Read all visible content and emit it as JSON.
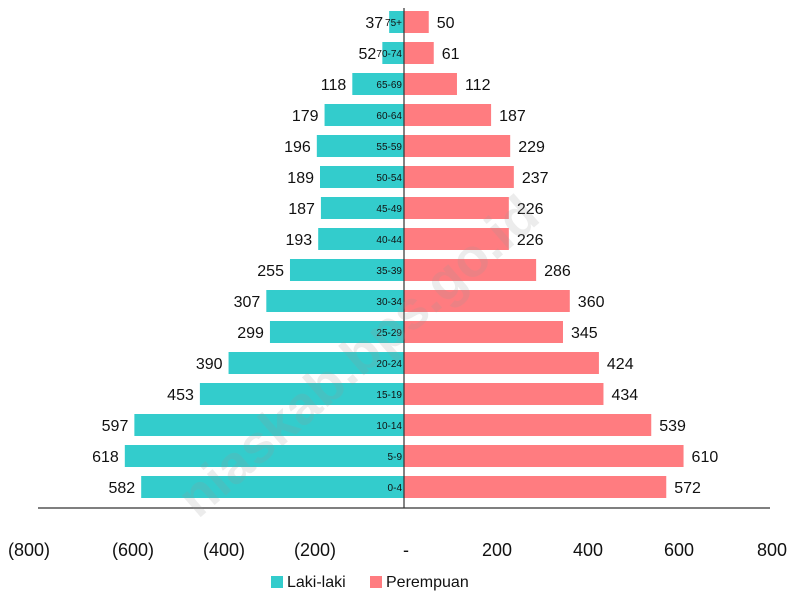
{
  "chart_data": {
    "type": "bar",
    "orientation": "horizontal",
    "categories": [
      "0-4",
      "5-9",
      "10-14",
      "15-19",
      "20-24",
      "25-29",
      "30-34",
      "35-39",
      "40-44",
      "45-49",
      "50-54",
      "55-59",
      "60-64",
      "65-69",
      "70-74",
      "75+"
    ],
    "series": [
      {
        "name": "Laki-laki",
        "color": "#33cccc",
        "values": [
          582,
          618,
          597,
          453,
          390,
          299,
          307,
          255,
          193,
          187,
          189,
          196,
          179,
          118,
          52,
          37
        ]
      },
      {
        "name": "Perempuan",
        "color": "#ff7c80",
        "values": [
          572,
          610,
          539,
          434,
          424,
          345,
          360,
          286,
          226,
          226,
          237,
          229,
          187,
          112,
          61,
          50
        ]
      }
    ],
    "x_ticks": [
      "(800)",
      "(600)",
      "(400)",
      "(200)",
      "-",
      "200",
      "400",
      "600",
      "800"
    ],
    "xlim": [
      -800,
      800
    ],
    "grid": false,
    "legend": "bottom",
    "watermark": "niaskab.bps.go.id"
  }
}
